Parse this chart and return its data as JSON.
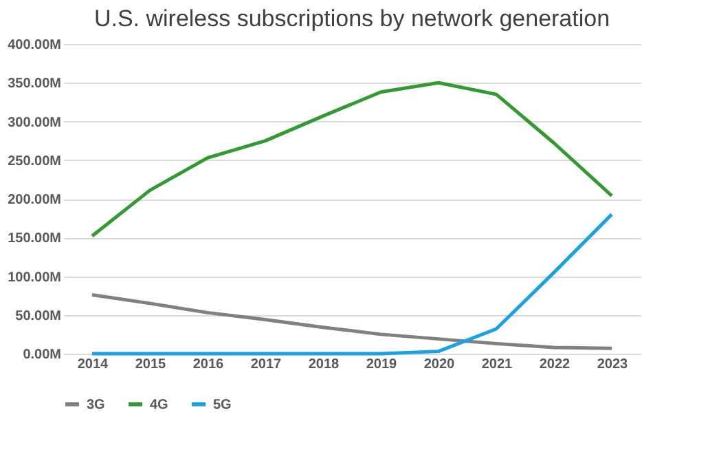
{
  "chart_data": {
    "type": "line",
    "title": "U.S. wireless subscriptions by network generation",
    "categories": [
      "2014",
      "2015",
      "2016",
      "2017",
      "2018",
      "2019",
      "2020",
      "2021",
      "2022",
      "2023"
    ],
    "series": [
      {
        "name": "3G",
        "color": "#808080",
        "values": [
          76,
          65,
          53,
          44,
          34,
          25,
          19,
          13,
          8,
          7
        ]
      },
      {
        "name": "4G",
        "color": "#339933",
        "values": [
          152,
          211,
          253,
          275,
          307,
          338,
          350,
          335,
          272,
          204
        ]
      },
      {
        "name": "5G",
        "color": "#1ba1e2",
        "values": [
          0,
          0,
          0,
          0,
          0,
          0,
          3,
          32,
          105,
          180
        ]
      }
    ],
    "ylim": [
      0,
      400
    ],
    "yticks": [
      {
        "value": 0,
        "label": "0.00M"
      },
      {
        "value": 50,
        "label": "50.00M"
      },
      {
        "value": 100,
        "label": "100.00M"
      },
      {
        "value": 150,
        "label": "150.00M"
      },
      {
        "value": 200,
        "label": "200.00M"
      },
      {
        "value": 250,
        "label": "250.00M"
      },
      {
        "value": 300,
        "label": "300.00M"
      },
      {
        "value": 350,
        "label": "350.00M"
      },
      {
        "value": 400,
        "label": "400.00M"
      }
    ],
    "grid": "y",
    "legend": "bottom",
    "marker": "none",
    "line_style": "solid"
  }
}
